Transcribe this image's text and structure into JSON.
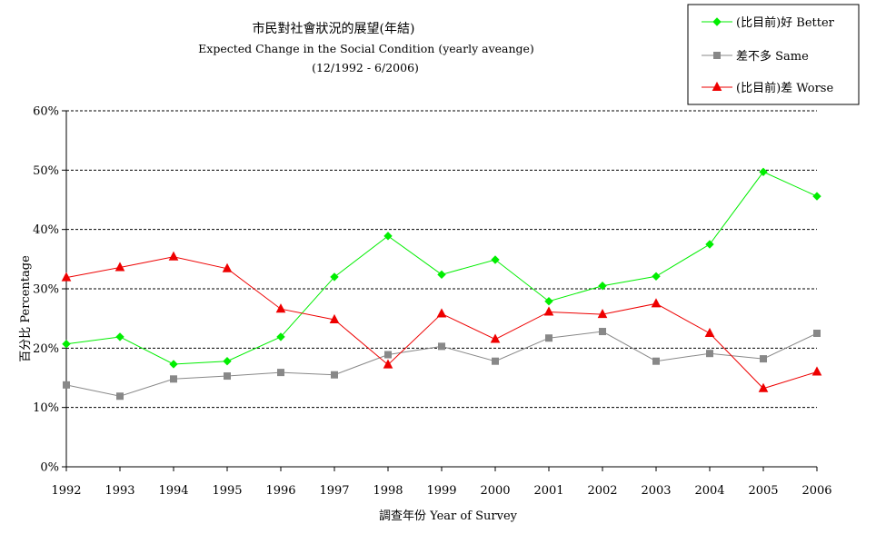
{
  "chart_data": {
    "type": "line",
    "title": "市民對社會狀況的展望(年結)",
    "subtitle": "Expected Change in the Social Condition (yearly aveange)",
    "subtitle2": "(12/1992 - 6/2006)",
    "xlabel": "調查年份 Year of Survey",
    "ylabel": "百分比 Percentage",
    "ylim": [
      0,
      60
    ],
    "ytick_labels": [
      "0%",
      "10%",
      "20%",
      "30%",
      "40%",
      "50%",
      "60%"
    ],
    "categories": [
      "1992",
      "1993",
      "1994",
      "1995",
      "1996",
      "1997",
      "1998",
      "1999",
      "2000",
      "2001",
      "2002",
      "2003",
      "2004",
      "2005",
      "2006"
    ],
    "grid": "horizontal dashed",
    "legend_position": "top-right",
    "series": [
      {
        "name": "(比目前)好 Better",
        "color": "#00ee00",
        "marker": "diamond",
        "values": [
          20.7,
          21.9,
          17.3,
          17.8,
          21.9,
          32.0,
          38.9,
          32.4,
          34.9,
          27.9,
          30.5,
          32.1,
          37.5,
          49.7,
          45.6
        ]
      },
      {
        "name": "差不多 Same",
        "color": "#888888",
        "marker": "square",
        "values": [
          13.8,
          11.9,
          14.8,
          15.3,
          15.9,
          15.5,
          18.9,
          20.3,
          17.8,
          21.7,
          22.8,
          17.8,
          19.1,
          18.2,
          22.5
        ]
      },
      {
        "name": "(比目前)差 Worse",
        "color": "#ee0000",
        "marker": "triangle",
        "values": [
          31.9,
          33.6,
          35.4,
          33.4,
          26.6,
          24.8,
          17.2,
          25.8,
          21.5,
          26.1,
          25.7,
          27.5,
          22.5,
          13.2,
          16.0
        ]
      }
    ]
  }
}
